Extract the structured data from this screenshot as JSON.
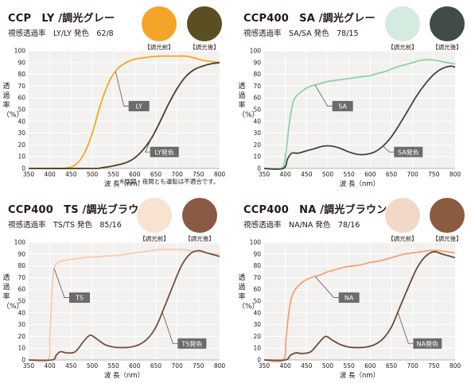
{
  "charts": [
    {
      "title": "CCP　LY /調光グレー",
      "subtitle": "視感透過率　LY/LY 発色　62/8",
      "lens_before": {
        "label": "【調光前】",
        "color": "#f3a52a"
      },
      "lens_after": {
        "label": "【調光後】",
        "color": "#5b4f22"
      },
      "ylabel": "透過率（%）",
      "xlabel": "波 長（nm）",
      "note": "※昼間・夜間とも運転は不適合です。",
      "chart_data": {
        "type": "line",
        "xlim": [
          350,
          800
        ],
        "ylim": [
          0,
          100
        ],
        "xticks": [
          350,
          400,
          450,
          500,
          550,
          600,
          650,
          700,
          750,
          800
        ],
        "yticks": [
          0,
          10,
          20,
          30,
          40,
          50,
          60,
          70,
          80,
          90,
          100
        ],
        "grid": true,
        "series": [
          {
            "name": "LY",
            "color": "#f5a623",
            "label_at": 555,
            "label_pos": [
              610,
              53
            ],
            "x": [
              350,
              420,
              440,
              460,
              480,
              500,
              520,
              540,
              560,
              580,
              600,
              620,
              640,
              660,
              680,
              700,
              720,
              740,
              760,
              780,
              800
            ],
            "y": [
              0,
              0,
              0.5,
              3,
              12,
              30,
              55,
              74,
              85,
              90,
              93,
              94,
              95,
              95.5,
              95.5,
              95.5,
              95.5,
              94,
              92,
              91,
              90
            ]
          },
          {
            "name": "LY発色",
            "color": "#4a4020",
            "label_at": 640,
            "label_pos": [
              670,
              14
            ],
            "x": [
              350,
              500,
              520,
              540,
              560,
              580,
              600,
              620,
              640,
              660,
              680,
              700,
              720,
              740,
              760,
              780,
              800
            ],
            "y": [
              0,
              0,
              0.5,
              1.5,
              3,
              5,
              9,
              16,
              26,
              40,
              55,
              68,
              78,
              84,
              87,
              89,
              90
            ]
          }
        ]
      }
    },
    {
      "title": "CCP400　SA /調光グレー",
      "subtitle": "視感透過率　SA/SA 発色　78/15",
      "lens_before": {
        "label": "【調光前】",
        "color": "#d6ebdf"
      },
      "lens_after": {
        "label": "【調光後】",
        "color": "#434b47"
      },
      "ylabel": "透過率（%）",
      "xlabel": "波 長（nm）",
      "note": "",
      "chart_data": {
        "type": "line",
        "xlim": [
          350,
          800
        ],
        "ylim": [
          0,
          100
        ],
        "xticks": [
          350,
          400,
          450,
          500,
          550,
          600,
          650,
          700,
          750,
          800
        ],
        "yticks": [
          0,
          10,
          20,
          30,
          40,
          50,
          60,
          70,
          80,
          90,
          100
        ],
        "grid": true,
        "series": [
          {
            "name": "SA",
            "color": "#8fd1a8",
            "label_at": 470,
            "label_pos": [
              535,
              53
            ],
            "x": [
              350,
              390,
              400,
              410,
              420,
              440,
              460,
              480,
              500,
              520,
              540,
              560,
              580,
              600,
              620,
              640,
              660,
              680,
              700,
              720,
              740,
              760,
              780,
              800
            ],
            "y": [
              0,
              0,
              10,
              40,
              58,
              66,
              70,
              72,
              74,
              75,
              76,
              77,
              78,
              79,
              81,
              83,
              86,
              88,
              90,
              92,
              92.5,
              91.5,
              90,
              89
            ]
          },
          {
            "name": "SA発色",
            "color": "#3e4642",
            "label_at": 630,
            "label_pos": [
              690,
              14
            ],
            "x": [
              350,
              395,
              405,
              415,
              430,
              450,
              470,
              490,
              510,
              530,
              550,
              570,
              590,
              610,
              630,
              650,
              670,
              690,
              710,
              730,
              750,
              770,
              790,
              800
            ],
            "y": [
              0,
              0,
              8,
              13,
              13,
              15,
              17,
              19,
              19,
              17,
              14,
              12,
              12,
              14,
              19,
              27,
              38,
              50,
              62,
              72,
              80,
              85,
              87,
              86
            ]
          }
        ]
      }
    },
    {
      "title": "CCP400　TS /調光ブラウン",
      "subtitle": "視感透過率　TS/TS 発色　85/16",
      "lens_before": {
        "label": "【調光前】",
        "color": "#f8e3d1"
      },
      "lens_after": {
        "label": "【調光後】",
        "color": "#8a5a45"
      },
      "ylabel": "透過率（%）",
      "xlabel": "波 長（nm）",
      "note": "",
      "chart_data": {
        "type": "line",
        "xlim": [
          350,
          800
        ],
        "ylim": [
          0,
          100
        ],
        "xticks": [
          350,
          400,
          450,
          500,
          550,
          600,
          650,
          700,
          750,
          800
        ],
        "yticks": [
          0,
          10,
          20,
          30,
          40,
          50,
          60,
          70,
          80,
          90,
          100
        ],
        "grid": true,
        "series": [
          {
            "name": "TS",
            "color": "#f6cbb0",
            "label_at": 410,
            "label_pos": [
              470,
              53
            ],
            "x": [
              350,
              395,
              400,
              405,
              410,
              420,
              440,
              460,
              480,
              500,
              520,
              540,
              560,
              580,
              600,
              620,
              640,
              660,
              680,
              700,
              720,
              740,
              760,
              780,
              800
            ],
            "y": [
              0,
              0,
              20,
              60,
              78,
              83,
              85,
              86,
              87,
              87.5,
              88,
              88.5,
              89,
              90,
              91,
              92,
              93,
              94,
              94,
              94,
              93.5,
              92.5,
              91.5,
              90.5,
              90
            ]
          },
          {
            "name": "TS発色",
            "color": "#7a4f3e",
            "label_at": 665,
            "label_pos": [
              735,
              14
            ],
            "x": [
              350,
              405,
              415,
              425,
              440,
              460,
              480,
              495,
              510,
              530,
              550,
              570,
              590,
              610,
              630,
              650,
              670,
              690,
              710,
              730,
              750,
              770,
              790,
              800
            ],
            "y": [
              0,
              0,
              4,
              7,
              6,
              7,
              16,
              21,
              18,
              13,
              11,
              10.5,
              11,
              13,
              18,
              28,
              45,
              63,
              80,
              90,
              93,
              91,
              89,
              88
            ]
          }
        ]
      }
    },
    {
      "title": "CCP400　NA /調光ブラウン",
      "subtitle": "視感透過率　NA/NA 発色　78/16",
      "lens_before": {
        "label": "【調光前】",
        "color": "#f2d8c6"
      },
      "lens_after": {
        "label": "【調光後】",
        "color": "#8b5b40"
      },
      "ylabel": "透過率（%）",
      "xlabel": "波 長（nm）",
      "note": "",
      "chart_data": {
        "type": "line",
        "xlim": [
          350,
          800
        ],
        "ylim": [
          0,
          100
        ],
        "xticks": [
          350,
          400,
          450,
          500,
          550,
          600,
          650,
          700,
          750,
          800
        ],
        "yticks": [
          0,
          10,
          20,
          30,
          40,
          50,
          60,
          70,
          80,
          90,
          100
        ],
        "grid": true,
        "series": [
          {
            "name": "NA",
            "color": "#f3a07a",
            "label_at": 470,
            "label_pos": [
              550,
              53
            ],
            "x": [
              350,
              395,
              402,
              410,
              420,
              440,
              460,
              480,
              500,
              520,
              540,
              560,
              580,
              600,
              620,
              640,
              660,
              680,
              700,
              720,
              740,
              760,
              780,
              800
            ],
            "y": [
              0,
              0,
              20,
              45,
              58,
              66,
              70,
              72,
              75,
              77,
              79,
              80,
              81,
              83,
              84,
              86,
              88,
              90,
              91,
              92,
              93,
              93,
              92,
              91
            ]
          },
          {
            "name": "NA発色",
            "color": "#6e4a36",
            "label_at": 665,
            "label_pos": [
              735,
              14
            ],
            "x": [
              350,
              400,
              412,
              425,
              440,
              460,
              480,
              495,
              510,
              530,
              550,
              570,
              590,
              610,
              630,
              650,
              670,
              690,
              710,
              730,
              750,
              770,
              790,
              800
            ],
            "y": [
              0,
              0,
              4,
              6,
              5.5,
              7,
              15,
              20,
              17,
              13,
              11,
              10.5,
              11,
              13,
              18,
              28,
              45,
              62,
              78,
              88,
              92,
              90,
              88,
              87
            ]
          }
        ]
      }
    }
  ]
}
